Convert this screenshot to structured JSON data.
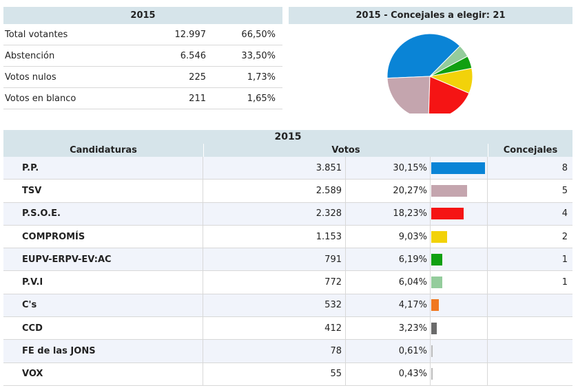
{
  "summary": {
    "header": "2015",
    "rows": [
      {
        "label": "Total votantes",
        "value": "12.997",
        "pct": "66,50%"
      },
      {
        "label": "Abstención",
        "value": "6.546",
        "pct": "33,50%"
      },
      {
        "label": "Votos nulos",
        "value": "225",
        "pct": "1,73%"
      },
      {
        "label": "Votos en blanco",
        "value": "211",
        "pct": "1,65%"
      }
    ]
  },
  "pie_panel": {
    "title": "2015 - Concejales a elegir: 21"
  },
  "results": {
    "header": "2015",
    "columns": {
      "candidaturas": "Candidaturas",
      "votos": "Votos",
      "concejales": "Concejales"
    }
  },
  "chart_data": [
    {
      "type": "pie",
      "title": "2015 - Concejales a elegir: 21",
      "categories": [
        "P.P.",
        "TSV",
        "P.S.O.E.",
        "COMPROMÍS",
        "EUPV-ERPV-EV:AC",
        "P.V.I"
      ],
      "values": [
        8,
        5,
        4,
        2,
        1,
        1
      ],
      "colors": [
        "#0a84d6",
        "#c4a5ae",
        "#f51414",
        "#f2d20a",
        "#11a011",
        "#94cc9c"
      ]
    },
    {
      "type": "table",
      "title": "2015",
      "columns": [
        "Candidaturas",
        "Votos",
        "%",
        "Concejales"
      ],
      "rows": [
        {
          "name": "P.P.",
          "votes": "3.851",
          "pct": "30,15%",
          "pct_value": 30.15,
          "seats": "8",
          "color": "#0a84d6"
        },
        {
          "name": "TSV",
          "votes": "2.589",
          "pct": "20,27%",
          "pct_value": 20.27,
          "seats": "5",
          "color": "#c4a5ae"
        },
        {
          "name": "P.S.O.E.",
          "votes": "2.328",
          "pct": "18,23%",
          "pct_value": 18.23,
          "seats": "4",
          "color": "#f51414"
        },
        {
          "name": "COMPROMÍS",
          "votes": "1.153",
          "pct": "9,03%",
          "pct_value": 9.03,
          "seats": "2",
          "color": "#f2d20a"
        },
        {
          "name": "EUPV-ERPV-EV:AC",
          "votes": "791",
          "pct": "6,19%",
          "pct_value": 6.19,
          "seats": "1",
          "color": "#11a011"
        },
        {
          "name": "P.V.I",
          "votes": "772",
          "pct": "6,04%",
          "pct_value": 6.04,
          "seats": "1",
          "color": "#94cc9c"
        },
        {
          "name": "C's",
          "votes": "532",
          "pct": "4,17%",
          "pct_value": 4.17,
          "seats": "",
          "color": "#f07820"
        },
        {
          "name": "CCD",
          "votes": "412",
          "pct": "3,23%",
          "pct_value": 3.23,
          "seats": "",
          "color": "#6a6a6a"
        },
        {
          "name": "FE de las JONS",
          "votes": "78",
          "pct": "0,61%",
          "pct_value": 0.61,
          "seats": "",
          "color": "#bbbbbb"
        },
        {
          "name": "VOX",
          "votes": "55",
          "pct": "0,43%",
          "pct_value": 0.43,
          "seats": "",
          "color": "#bbbbbb"
        }
      ]
    }
  ]
}
